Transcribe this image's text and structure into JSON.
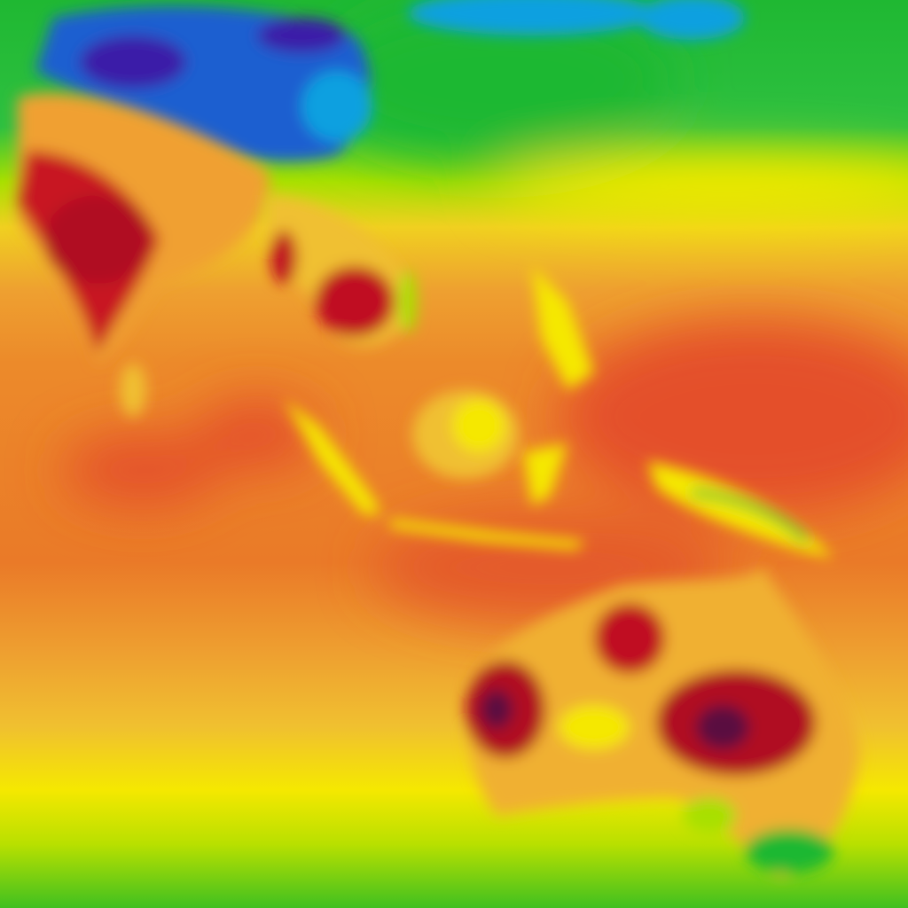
{
  "map": {
    "type": "temperature-heatmap",
    "palette": {
      "very_cold": "#3a1fa8",
      "cold": "#1e5fd0",
      "cool": "#0aa0e0",
      "mild": "#1fb832",
      "warm_mild": "#a8e000",
      "warm": "#f5e800",
      "hot_low": "#f0b030",
      "hot": "#ec8a2a",
      "very_hot": "#e04a22",
      "extreme": "#c01020",
      "max": "#5a1040"
    }
  }
}
